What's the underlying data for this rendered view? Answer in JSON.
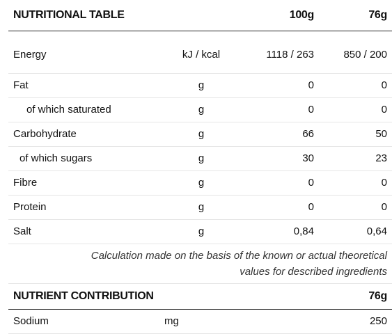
{
  "table": {
    "title": "NUTRITIONAL TABLE",
    "col_100g": "100g",
    "col_76g": "76g",
    "rows": [
      {
        "label": "Energy",
        "unit": "kJ / kcal",
        "per100": "1118 / 263",
        "per76": "850 / 200"
      },
      {
        "label": "Fat",
        "unit": "g",
        "per100": "0",
        "per76": "0"
      },
      {
        "label": "of which saturated",
        "unit": "g",
        "per100": "0",
        "per76": "0"
      },
      {
        "label": "Carbohydrate",
        "unit": "g",
        "per100": "66",
        "per76": "50"
      },
      {
        "label": "of which sugars",
        "unit": "g",
        "per100": "30",
        "per76": "23"
      },
      {
        "label": "Fibre",
        "unit": "g",
        "per100": "0",
        "per76": "0"
      },
      {
        "label": "Protein",
        "unit": "g",
        "per100": "0",
        "per76": "0"
      },
      {
        "label": "Salt",
        "unit": "g",
        "per100": "0,84",
        "per76": "0,64"
      }
    ],
    "note_line1": "Calculation made on the basis of the known or actual theoretical",
    "note_line2": "values for described ingredients"
  },
  "contribution": {
    "title": "NUTRIENT CONTRIBUTION",
    "col_76g": "76g",
    "rows": [
      {
        "label": "Sodium",
        "unit": "mg",
        "per76": "250"
      }
    ]
  }
}
